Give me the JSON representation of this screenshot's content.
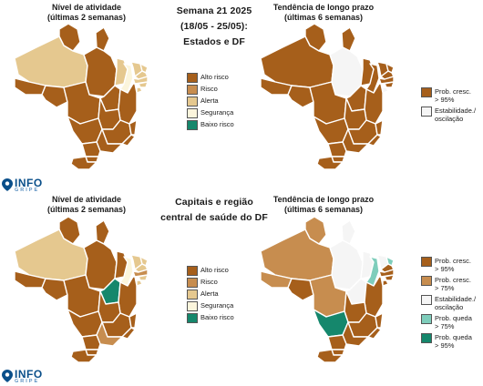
{
  "colors": {
    "alto_risco": "#a65f1b",
    "risco": "#c78d4f",
    "alerta": "#e5c88f",
    "seguranca": "#fbf5dc",
    "baixo_risco": "#15876c",
    "cresc95": "#a65f1b",
    "cresc75": "#c78d4f",
    "estab": "#f5f5f5",
    "queda75": "#7ecdbb",
    "queda95": "#15876c"
  },
  "top": {
    "left_title_1": "Nível de atividade",
    "left_title_2": "(últimas 2 semanas)",
    "center_line_1": "Semana 21 2025",
    "center_line_2": "(18/05 - 25/05):",
    "center_line_3": "Estados e DF",
    "right_title_1": "Tendência de longo prazo",
    "right_title_2": "(últimas 6 semanas)",
    "legend_activity": [
      "Alto risco",
      "Risco",
      "Alerta",
      "Segurança",
      "Baixo risco"
    ],
    "legend_trend": [
      "Prob. cresc.",
      "> 95%",
      "Estabilidade./",
      "oscilação"
    ]
  },
  "bottom": {
    "left_title_1": "Nível de atividade",
    "left_title_2": "(últimas 2 semanas)",
    "center_line_1": "Capitais e região",
    "center_line_2": "central de saúde do DF",
    "right_title_1": "Tendência de longo prazo",
    "right_title_2": "(últimas 6 semanas)",
    "legend_activity": [
      "Alto risco",
      "Risco",
      "Alerta",
      "Segurança",
      "Baixo risco"
    ],
    "legend_trend": [
      "Prob. cresc.",
      "> 95%",
      "Prob. cresc.",
      "> 75%",
      "Estabilidade./",
      "oscilação",
      "Prob. queda",
      "> 75%",
      "Prob. queda",
      "> 95%"
    ]
  },
  "logo": {
    "info": "INFO",
    "gripe": "GRIPE"
  }
}
